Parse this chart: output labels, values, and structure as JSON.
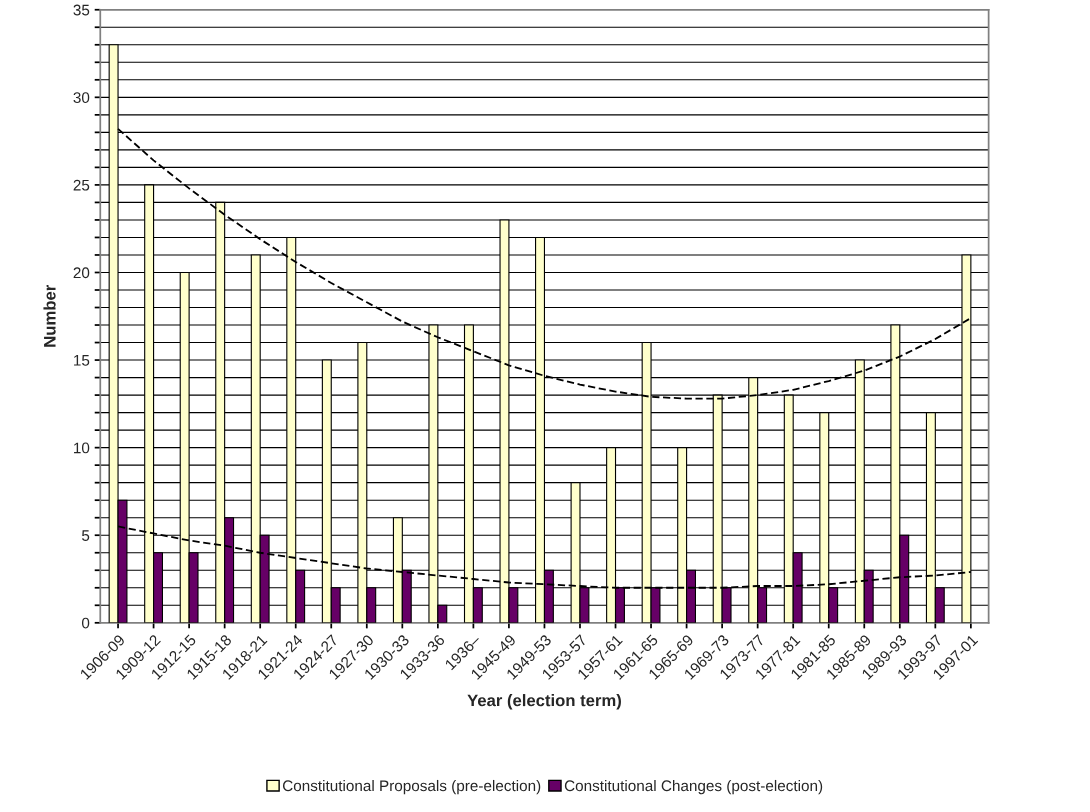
{
  "chart_data": {
    "type": "bar",
    "xlabel": "Year (election term)",
    "ylabel": "Number",
    "categories": [
      "1906-09",
      "1909-12",
      "1912-15",
      "1915-18",
      "1918-21",
      "1921-24",
      "1924-27",
      "1927-30",
      "1930-33",
      "1933-36",
      "1936–",
      "1945-49",
      "1949-53",
      "1953-57",
      "1957-61",
      "1961-65",
      "1965-69",
      "1969-73",
      "1973-77",
      "1977-81",
      "1981-85",
      "1985-89",
      "1989-93",
      "1993-97",
      "1997-01"
    ],
    "series": [
      {
        "name": "Constitutional Proposals (pre-election)",
        "color": "#ffffcc",
        "values": [
          33,
          25,
          20,
          24,
          21,
          22,
          15,
          16,
          6,
          17,
          17,
          23,
          22,
          8,
          10,
          16,
          10,
          13,
          14,
          13,
          12,
          15,
          17,
          12,
          21
        ]
      },
      {
        "name": "Constitutional Changes (post-election)",
        "color": "#660066",
        "values": [
          7,
          4,
          4,
          6,
          5,
          3,
          2,
          2,
          3,
          1,
          2,
          2,
          3,
          2,
          2,
          2,
          3,
          2,
          2,
          4,
          2,
          3,
          5,
          2,
          null
        ]
      },
      {
        "type": "line",
        "color": "#000000",
        "line_style": "dashed",
        "marker": "none",
        "values": [
          28.2,
          26.4,
          24.8,
          23.3,
          21.9,
          20.6,
          19.4,
          18.3,
          17.2,
          16.3,
          15.5,
          14.7,
          14.1,
          13.6,
          13.2,
          12.9,
          12.8,
          12.8,
          13.0,
          13.3,
          13.8,
          14.4,
          15.2,
          16.2,
          17.4
        ]
      },
      {
        "type": "line",
        "color": "#000000",
        "line_style": "dashed",
        "marker": "none",
        "values": [
          5.5,
          5.1,
          4.7,
          4.4,
          4.0,
          3.7,
          3.4,
          3.1,
          2.9,
          2.7,
          2.5,
          2.3,
          2.2,
          2.1,
          2.0,
          2.0,
          2.0,
          2.0,
          2.1,
          2.1,
          2.2,
          2.4,
          2.6,
          2.7,
          2.9
        ]
      }
    ],
    "ylim": [
      0,
      35
    ],
    "yticks": [
      0,
      {
        "value": 1,
        "label": null
      },
      {
        "value": 2,
        "label": null
      },
      {
        "value": 3,
        "label": null
      },
      {
        "value": 4,
        "label": null
      },
      5,
      {
        "value": 6,
        "label": null
      },
      {
        "value": 7,
        "label": null
      },
      {
        "value": 8,
        "label": null
      },
      {
        "value": 9,
        "label": null
      },
      10,
      {
        "value": 11,
        "label": null
      },
      {
        "value": 12,
        "label": null
      },
      {
        "value": 13,
        "label": null
      },
      {
        "value": 14,
        "label": null
      },
      15,
      {
        "value": 16,
        "label": null
      },
      {
        "value": 17,
        "label": null
      },
      {
        "value": 18,
        "label": null
      },
      {
        "value": 19,
        "label": null
      },
      20,
      {
        "value": 21,
        "label": null
      },
      {
        "value": 22,
        "label": null
      },
      {
        "value": 23,
        "label": null
      },
      {
        "value": 24,
        "label": null
      },
      25,
      {
        "value": 26,
        "label": null
      },
      {
        "value": 27,
        "label": null
      },
      {
        "value": 28,
        "label": null
      },
      {
        "value": 29,
        "label": null
      },
      30,
      {
        "value": 31,
        "label": null
      },
      {
        "value": 32,
        "label": null
      },
      {
        "value": 33,
        "label": null
      },
      {
        "value": 34,
        "label": null
      },
      35
    ],
    "grid": "y",
    "legend": "bottom"
  }
}
